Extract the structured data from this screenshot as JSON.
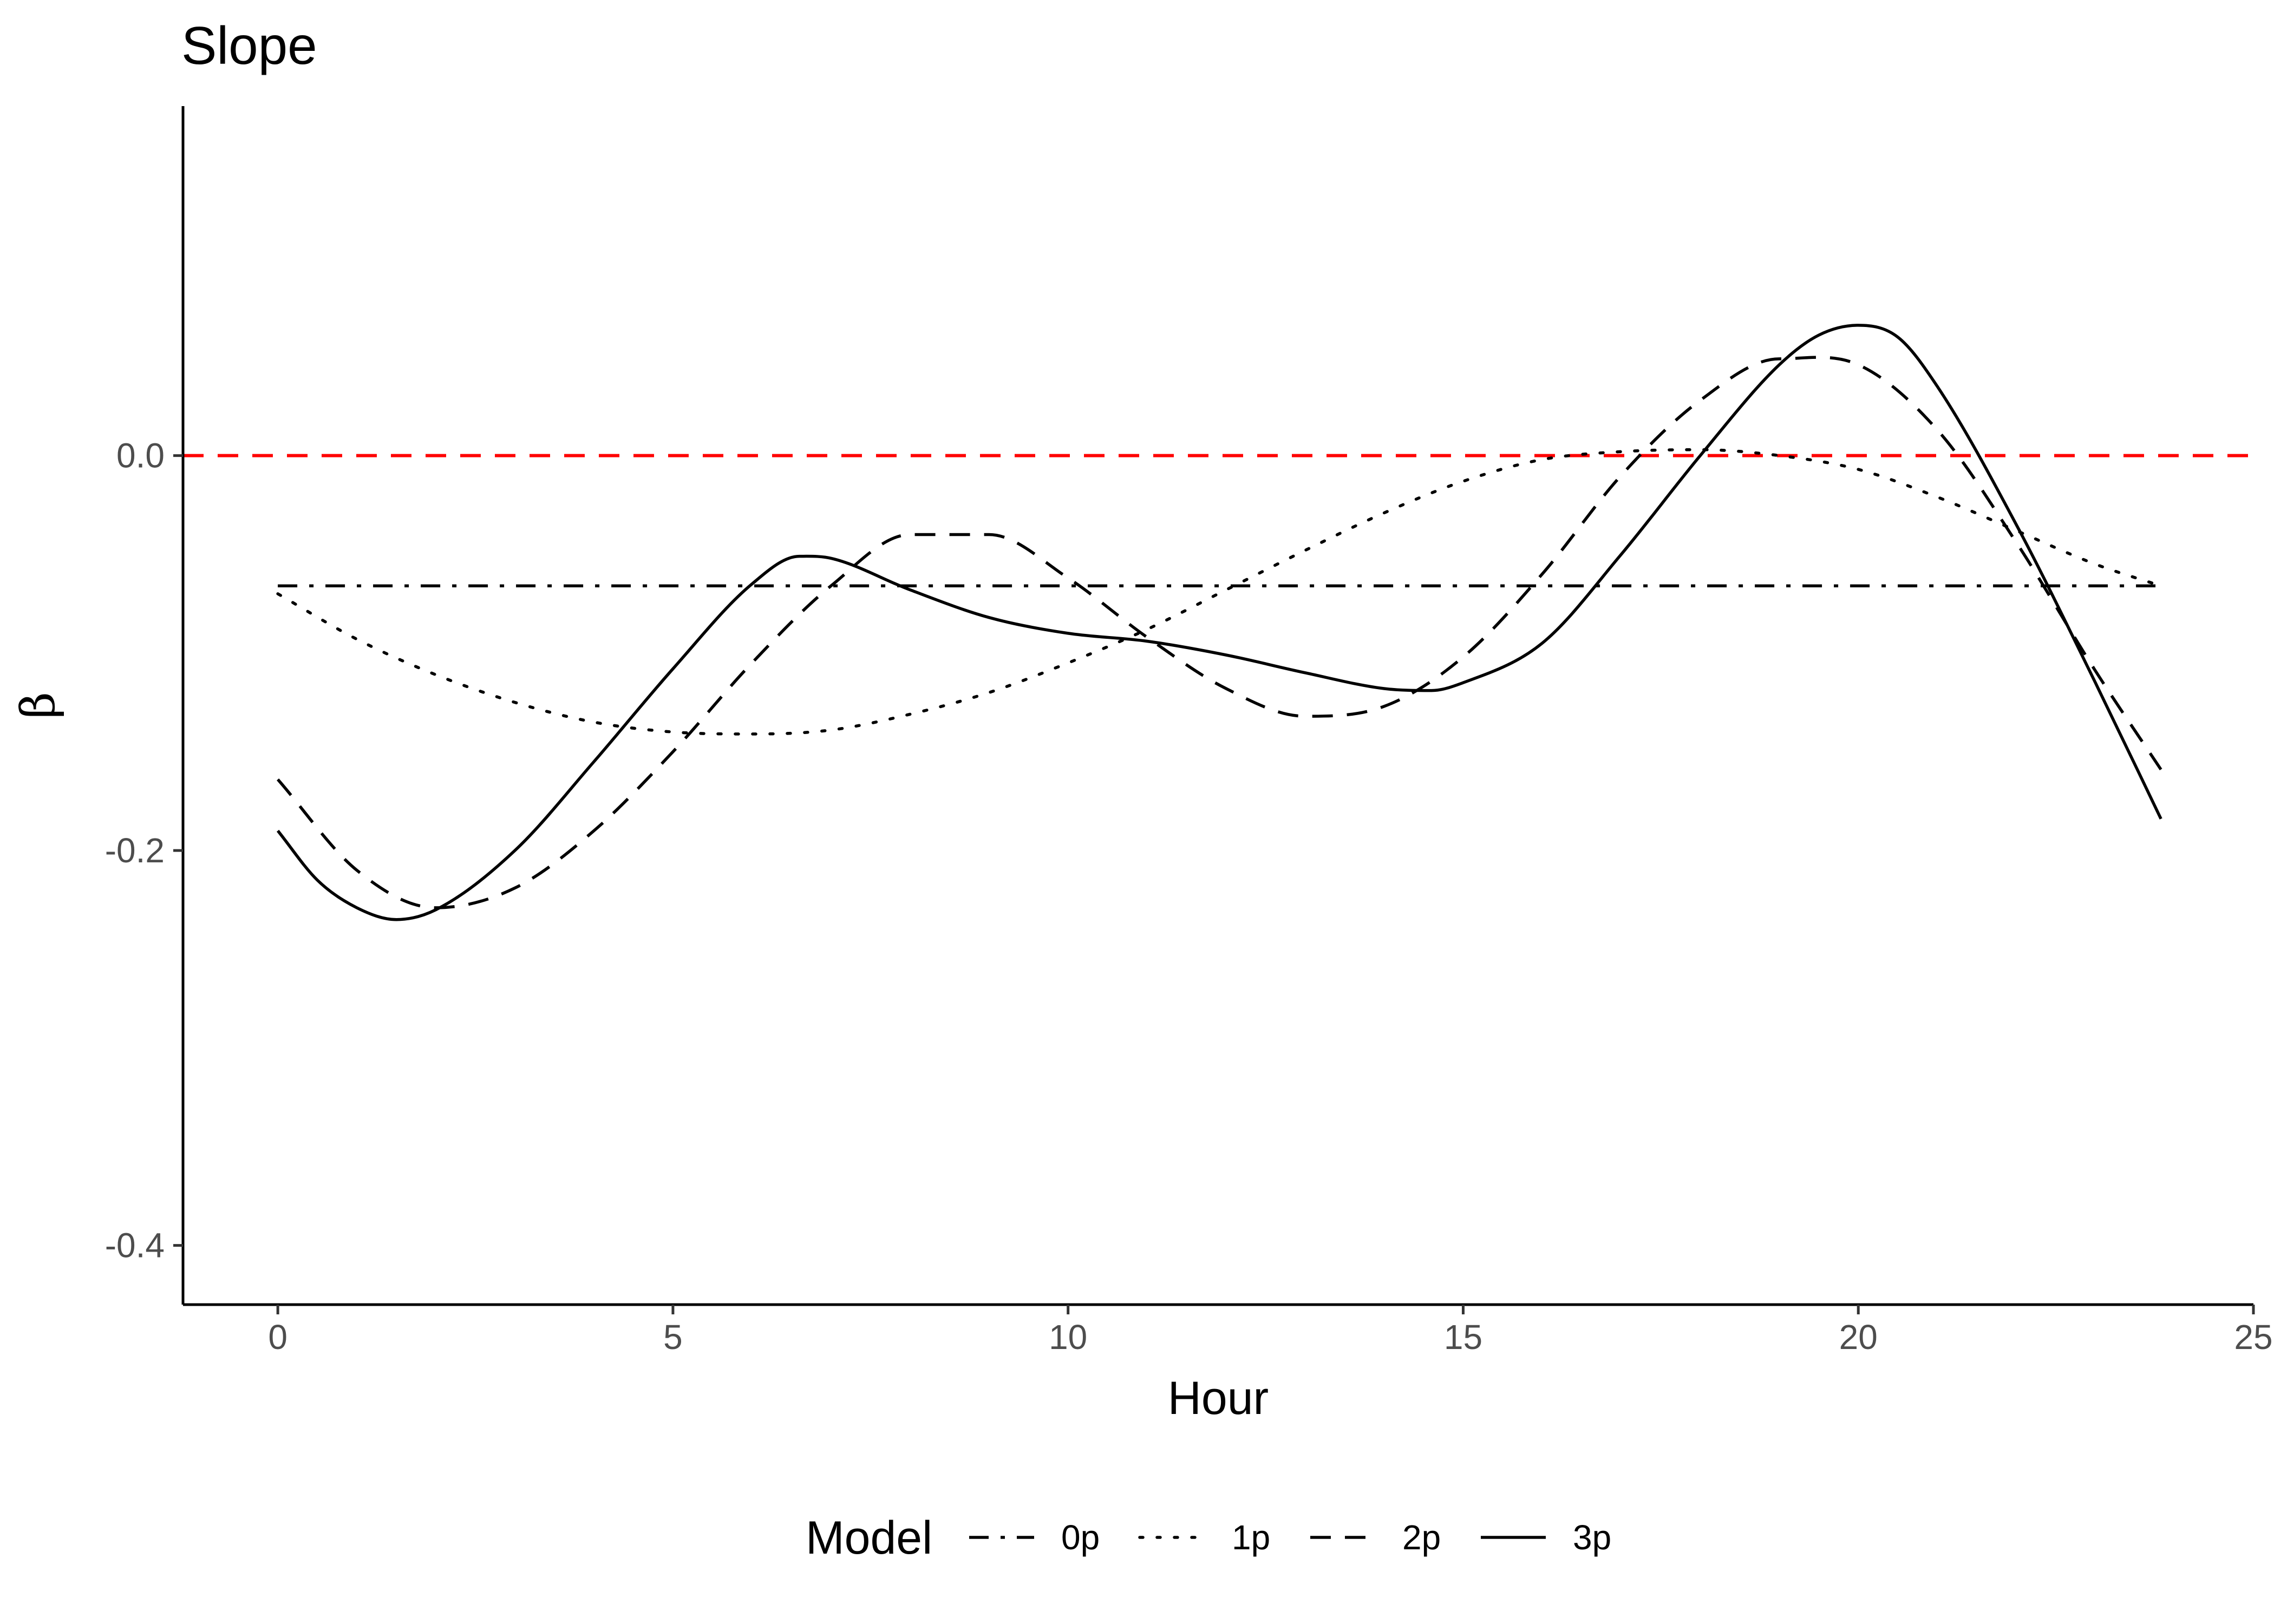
{
  "chart_data": {
    "type": "line",
    "title": "Slope",
    "xlabel": "Hour",
    "ylabel": "β",
    "xlim": [
      -1.2,
      25
    ],
    "ylim": [
      -0.43,
      0.177
    ],
    "xticks": [
      0,
      5,
      10,
      15,
      20,
      25
    ],
    "xtick_labels": [
      "0",
      "5",
      "10",
      "15",
      "20",
      "25"
    ],
    "yticks": [
      -0.4,
      -0.2,
      0.0
    ],
    "ytick_labels": [
      "-0.4",
      "-0.2",
      "0.0"
    ],
    "grid": false,
    "legend": {
      "title": "Model",
      "position": "bottom"
    },
    "reference_line": {
      "y": 0.0,
      "color": "#ff0000",
      "style": "dashed"
    },
    "series_color": "#000000",
    "series": [
      {
        "name": "0p",
        "style": "dashdot",
        "x": [
          0,
          23.83
        ],
        "y": [
          -0.066,
          -0.066
        ]
      },
      {
        "name": "1p",
        "style": "dotted",
        "x": [
          0,
          1,
          2,
          3,
          4,
          5,
          6,
          7,
          8,
          9,
          10,
          11,
          12,
          13,
          14,
          15,
          16,
          17,
          18,
          19,
          20,
          21,
          22,
          23,
          23.83
        ],
        "y": [
          -0.07,
          -0.093,
          -0.111,
          -0.125,
          -0.135,
          -0.14,
          -0.141,
          -0.139,
          -0.131,
          -0.12,
          -0.105,
          -0.088,
          -0.068,
          -0.048,
          -0.029,
          -0.013,
          -0.002,
          0.002,
          0.003,
          0.0,
          -0.007,
          -0.021,
          -0.038,
          -0.055,
          -0.066
        ]
      },
      {
        "name": "2p",
        "style": "dashed",
        "x": [
          0,
          1,
          2,
          3,
          4,
          5,
          6,
          7,
          8,
          9,
          10,
          11,
          12,
          13,
          14,
          15,
          16,
          17,
          18,
          19,
          20,
          21,
          22,
          23,
          23.83
        ],
        "y": [
          -0.164,
          -0.21,
          -0.229,
          -0.219,
          -0.19,
          -0.15,
          -0.105,
          -0.066,
          -0.04,
          -0.04,
          -0.062,
          -0.092,
          -0.118,
          -0.132,
          -0.127,
          -0.102,
          -0.06,
          -0.01,
          0.028,
          0.049,
          0.046,
          0.013,
          -0.044,
          -0.109,
          -0.159
        ]
      },
      {
        "name": "3p",
        "style": "solid",
        "x": [
          0,
          0.5,
          1,
          1.5,
          2,
          3,
          4,
          5,
          6,
          6.6,
          7,
          8,
          9,
          10,
          11,
          12,
          13,
          14,
          14.6,
          15,
          16,
          17,
          18,
          19,
          19.5,
          20,
          20.5,
          21,
          22,
          23,
          23.83
        ],
        "y": [
          -0.19,
          -0.215,
          -0.229,
          -0.235,
          -0.23,
          -0.2,
          -0.155,
          -0.108,
          -0.065,
          -0.051,
          -0.052,
          -0.068,
          -0.082,
          -0.09,
          -0.094,
          -0.101,
          -0.11,
          -0.118,
          -0.119,
          -0.115,
          -0.095,
          -0.05,
          0.0,
          0.046,
          0.061,
          0.066,
          0.06,
          0.035,
          -0.035,
          -0.115,
          -0.184
        ]
      }
    ]
  }
}
